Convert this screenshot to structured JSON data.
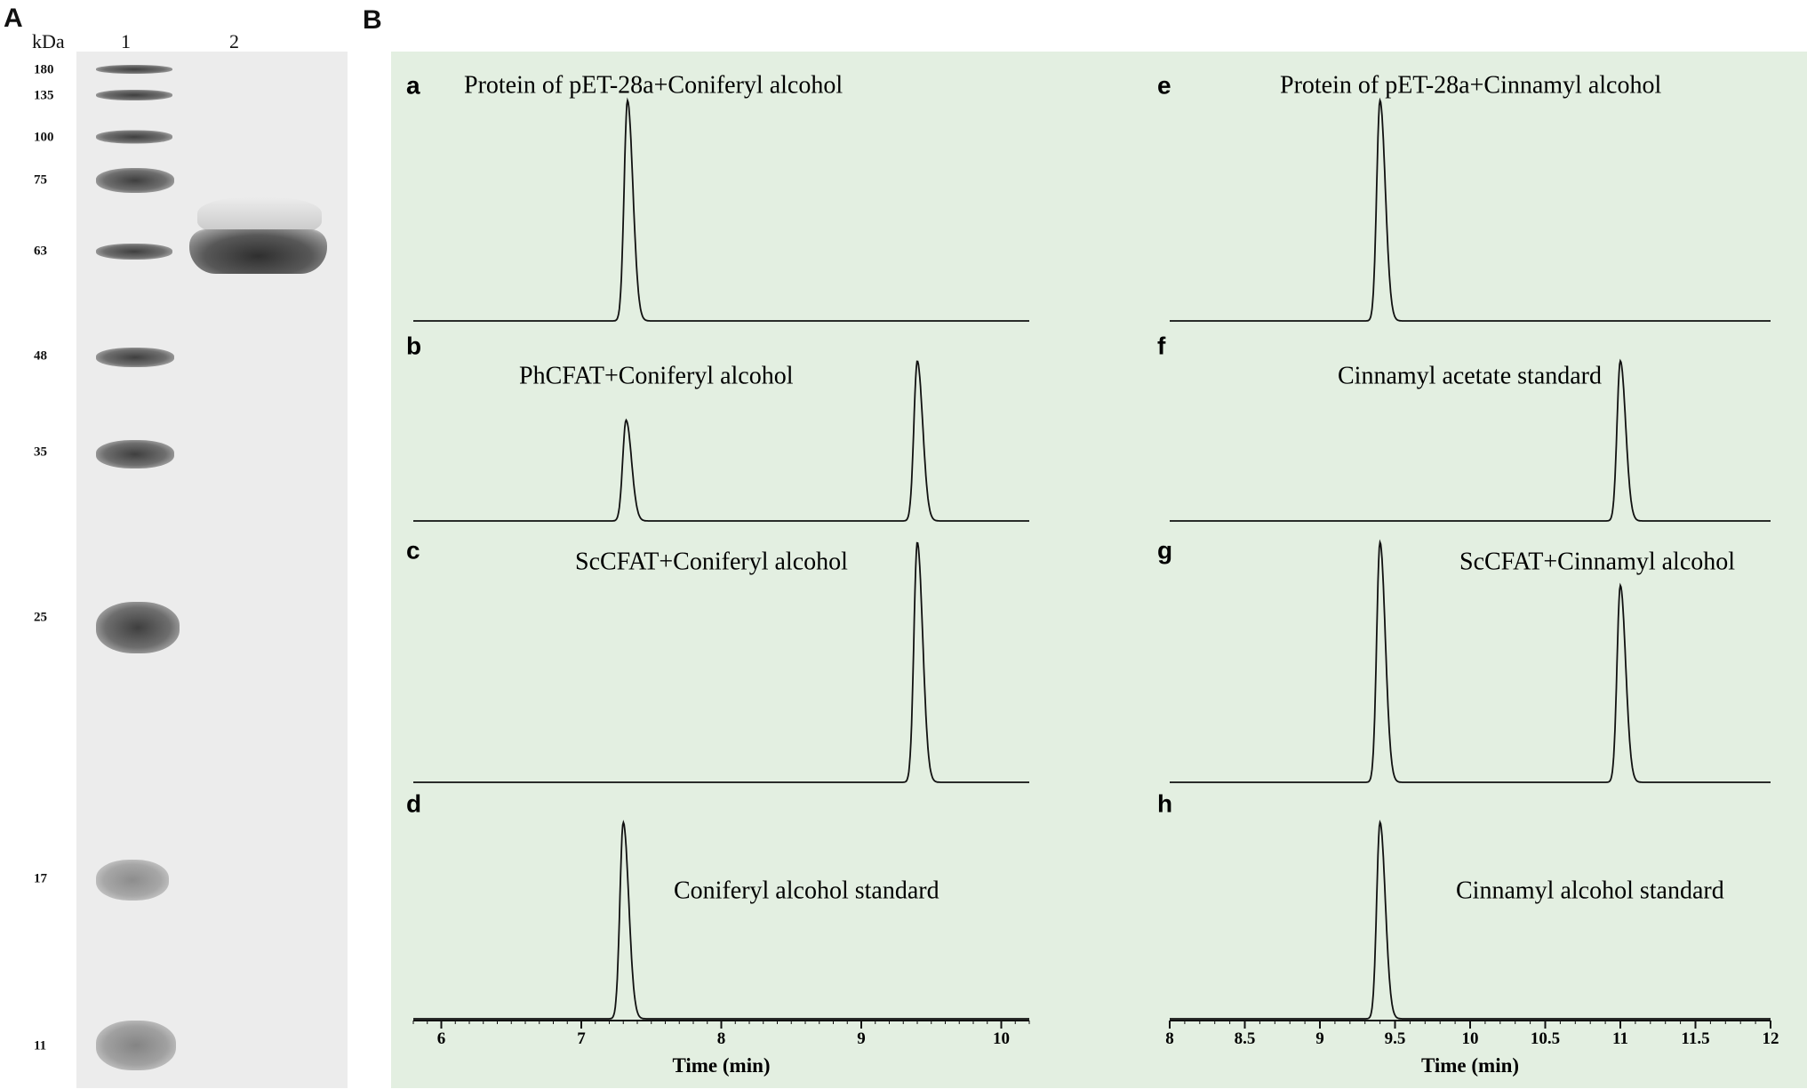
{
  "panels": {
    "left_letter": "A",
    "right_letter": "B"
  },
  "gel": {
    "unit_label": "kDa",
    "lanes": [
      "1",
      "2"
    ],
    "markers": [
      "180",
      "135",
      "100",
      "75",
      "63",
      "48",
      "35",
      "25",
      "17",
      "11"
    ]
  },
  "chart_data": {
    "type": "line",
    "xlabel": "Time (min)",
    "subplots": [
      {
        "letter": "a",
        "label": "Protein of pET-28a+Coniferyl alcohol",
        "column": "left",
        "peaks": [
          {
            "x": 7.33,
            "height": 1.0
          }
        ]
      },
      {
        "letter": "b",
        "label": "PhCFAT+Coniferyl alcohol",
        "column": "left",
        "peaks": [
          {
            "x": 7.32,
            "height": 0.63
          },
          {
            "x": 9.4,
            "height": 1.0
          }
        ]
      },
      {
        "letter": "c",
        "label": "ScCFAT+Coniferyl alcohol",
        "column": "left",
        "peaks": [
          {
            "x": 9.4,
            "height": 1.0
          }
        ]
      },
      {
        "letter": "d",
        "label": "Coniferyl alcohol standard",
        "column": "left",
        "peaks": [
          {
            "x": 7.3,
            "height": 1.0
          }
        ]
      },
      {
        "letter": "e",
        "label": "Protein of pET-28a+Cinnamyl alcohol",
        "column": "right",
        "peaks": [
          {
            "x": 9.4,
            "height": 1.0
          }
        ]
      },
      {
        "letter": "f",
        "label": "Cinnamyl acetate standard",
        "column": "right",
        "peaks": [
          {
            "x": 11.0,
            "height": 1.0
          }
        ]
      },
      {
        "letter": "g",
        "label": "ScCFAT+Cinnamyl alcohol",
        "column": "right",
        "peaks": [
          {
            "x": 9.4,
            "height": 1.0
          },
          {
            "x": 11.0,
            "height": 0.82
          }
        ]
      },
      {
        "letter": "h",
        "label": "Cinnamyl alcohol standard",
        "column": "right",
        "peaks": [
          {
            "x": 9.4,
            "height": 1.0
          }
        ]
      }
    ],
    "left_axis": {
      "xlim": [
        5.8,
        10.2
      ],
      "ticks": [
        "6",
        "7",
        "8",
        "9",
        "10"
      ]
    },
    "right_axis": {
      "xlim": [
        8,
        12
      ],
      "ticks": [
        "8",
        "8.5",
        "9",
        "9.5",
        "10",
        "10.5",
        "11",
        "11.5",
        "12"
      ]
    }
  }
}
